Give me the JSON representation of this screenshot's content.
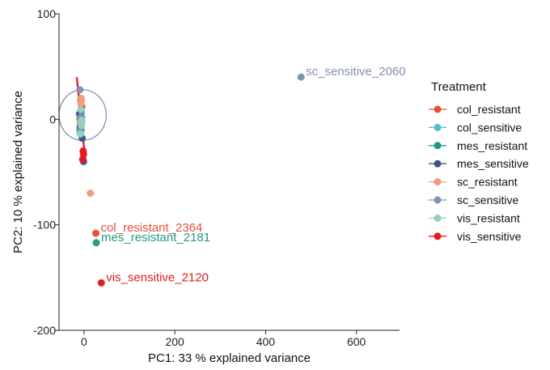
{
  "chart_data": {
    "type": "scatter",
    "xlabel": "PC1: 33 % explained variance",
    "ylabel": "PC2: 10 % explained variance",
    "xlim": [
      -55,
      695
    ],
    "ylim": [
      -200,
      100
    ],
    "xticks": [
      0,
      200,
      400,
      600
    ],
    "yticks": [
      -200,
      -100,
      0,
      100
    ],
    "grid": false,
    "legend": {
      "title": "Treatment",
      "placement": "right"
    },
    "series": [
      {
        "name": "col_resistant",
        "color": "#e8503a",
        "points": [
          [
            -8,
            5
          ],
          [
            -6,
            -3
          ],
          [
            -5,
            12
          ],
          [
            -9,
            -10
          ],
          [
            -7,
            18
          ],
          [
            26,
            -108
          ]
        ]
      },
      {
        "name": "col_sensitive",
        "color": "#4fbfcf",
        "points": [
          [
            -8,
            -5
          ],
          [
            -5,
            2
          ],
          [
            -9,
            -12
          ],
          [
            -6,
            8
          ]
        ]
      },
      {
        "name": "mes_resistant",
        "color": "#1f9a84",
        "points": [
          [
            -9,
            0
          ],
          [
            -8,
            -8
          ],
          [
            -7,
            6
          ],
          [
            -6,
            -2
          ],
          [
            27,
            -117
          ]
        ]
      },
      {
        "name": "mes_sensitive",
        "color": "#3c5488",
        "points": [
          [
            -10,
            5
          ],
          [
            -8,
            -7
          ],
          [
            -4,
            -18
          ],
          [
            -1,
            -40
          ]
        ]
      },
      {
        "name": "sc_resistant",
        "color": "#f39b7f",
        "points": [
          [
            -7,
            15
          ],
          [
            -6,
            20
          ],
          [
            -8,
            -2
          ],
          [
            14,
            -70
          ]
        ]
      },
      {
        "name": "sc_sensitive",
        "color": "#8491b4",
        "points": [
          [
            -9,
            28
          ],
          [
            -6,
            -10
          ],
          [
            -7,
            2
          ],
          [
            478,
            40
          ]
        ]
      },
      {
        "name": "vis_resistant",
        "color": "#91d1c2",
        "points": [
          [
            -8,
            -14
          ],
          [
            -6,
            -6
          ],
          [
            -7,
            9
          ],
          [
            -5,
            -1
          ]
        ]
      },
      {
        "name": "vis_sensitive",
        "color": "#e41a1c",
        "points": [
          [
            -2,
            -30
          ],
          [
            -3,
            -38
          ],
          [
            -1,
            -33
          ],
          [
            38,
            -155
          ]
        ]
      }
    ],
    "annotations": [
      {
        "text": "sc_sensitive_2060",
        "x": 478,
        "y": 40,
        "color": "#8491b4"
      },
      {
        "text": "col_resistant_2364",
        "x": 26,
        "y": -108,
        "color": "#e8503a"
      },
      {
        "text": "mes_resistant_2181",
        "x": 27,
        "y": -117,
        "color": "#1f9a84"
      },
      {
        "text": "vis_sensitive_2120",
        "x": 38,
        "y": -155,
        "color": "#e41a1c"
      }
    ],
    "ellipses": [
      {
        "series": "sc_sensitive",
        "cx": -3,
        "cy": 4,
        "rx": 52,
        "ry": 24,
        "color": "#8491b4"
      }
    ],
    "ellipse_lines": [
      {
        "series": "col_resistant",
        "color": "#e8503a",
        "x1": -15,
        "y1": 35,
        "x2": 4,
        "y2": -42
      },
      {
        "series": "vis_sensitive",
        "color": "#e41a1c",
        "x1": -16,
        "y1": 40,
        "x2": 3,
        "y2": -40
      }
    ]
  }
}
